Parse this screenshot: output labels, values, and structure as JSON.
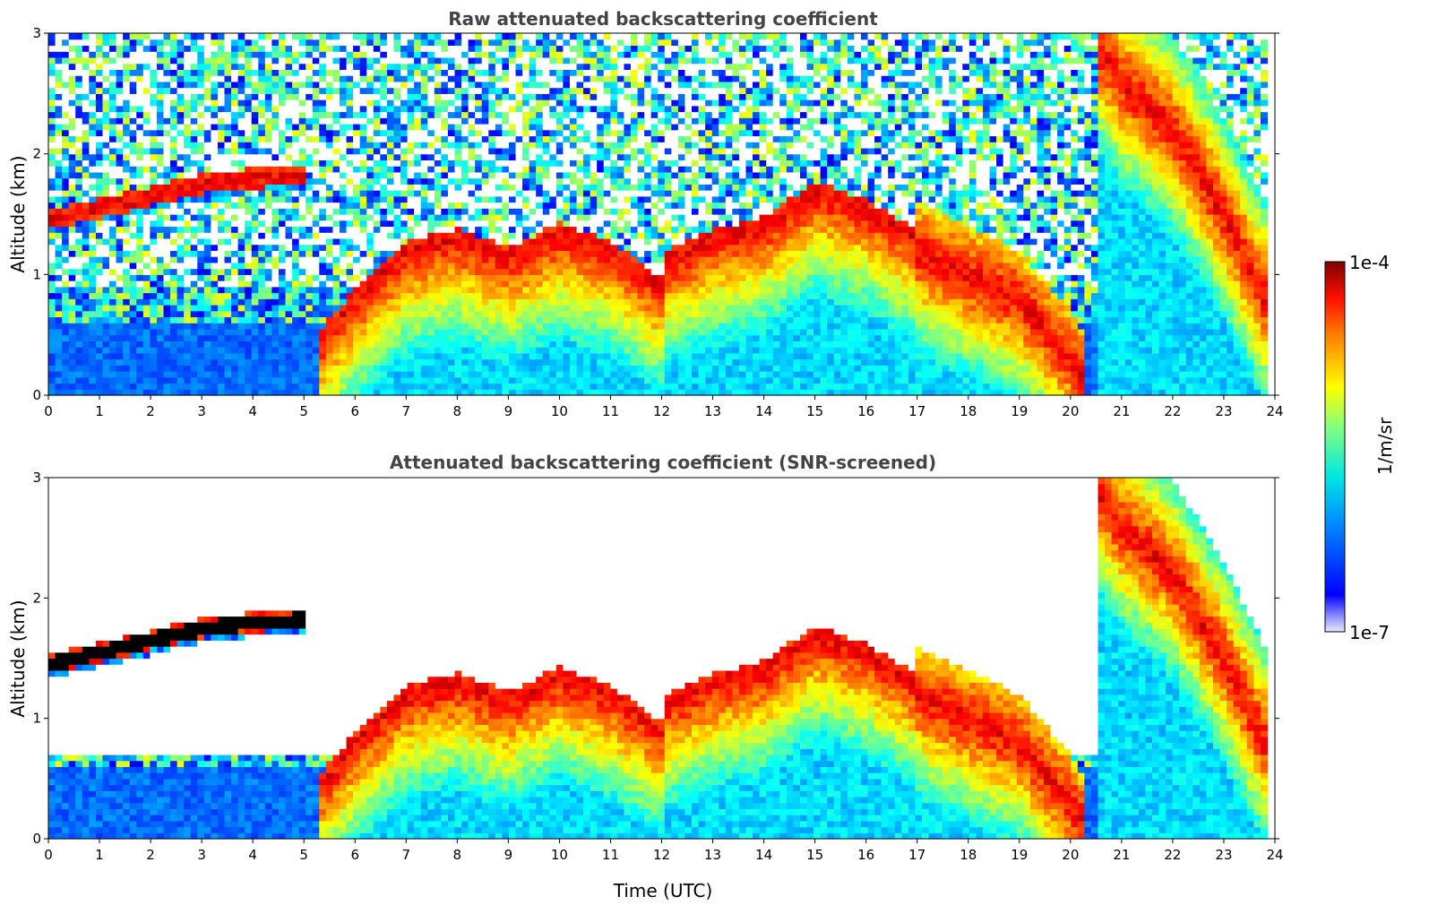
{
  "chart_data": [
    {
      "type": "heatmap",
      "title": "Raw attenuated backscattering coefficient",
      "xlabel": "",
      "ylabel": "Altitude (km)",
      "xlim": [
        0,
        24
      ],
      "ylim": [
        0,
        3
      ],
      "xticks": [
        "0",
        "1",
        "2",
        "3",
        "4",
        "5",
        "6",
        "7",
        "8",
        "9",
        "10",
        "11",
        "12",
        "13",
        "14",
        "15",
        "16",
        "17",
        "18",
        "19",
        "20",
        "21",
        "22",
        "23",
        "24"
      ],
      "yticks": [
        "0",
        "1",
        "2",
        "3"
      ],
      "screened": false,
      "layers": [
        {
          "name": "cloud-1",
          "x": [
            0,
            1,
            2,
            3,
            4,
            5
          ],
          "y": [
            1.45,
            1.55,
            1.65,
            1.75,
            1.8,
            1.82
          ],
          "data_end": 5.4
        },
        {
          "name": "cloud-2",
          "x": [
            5.3,
            6,
            7,
            8,
            9,
            10,
            11,
            12
          ],
          "y": [
            0.45,
            0.8,
            1.2,
            1.3,
            1.15,
            1.35,
            1.2,
            0.9
          ]
        },
        {
          "name": "cloud-3",
          "x": [
            12,
            13,
            14,
            15,
            16,
            17
          ],
          "y": [
            1.1,
            1.3,
            1.4,
            1.7,
            1.55,
            1.3
          ]
        },
        {
          "name": "precip",
          "x": [
            17,
            18,
            19,
            20,
            20.3
          ],
          "y": [
            1.2,
            1.0,
            0.8,
            0.3,
            0.1
          ]
        },
        {
          "name": "high-cloud",
          "x": [
            20.5,
            21,
            22,
            23,
            23.8
          ],
          "y": [
            2.9,
            2.6,
            2.2,
            1.5,
            0.8
          ]
        }
      ],
      "data_xmax": 23.85
    },
    {
      "type": "heatmap",
      "title": "Attenuated backscattering coefficient (SNR-screened)",
      "xlabel": "Time (UTC)",
      "ylabel": "Altitude (km)",
      "xlim": [
        0,
        24
      ],
      "ylim": [
        0,
        3
      ],
      "xticks": [
        "0",
        "1",
        "2",
        "3",
        "4",
        "5",
        "6",
        "7",
        "8",
        "9",
        "10",
        "11",
        "12",
        "13",
        "14",
        "15",
        "16",
        "17",
        "18",
        "19",
        "20",
        "21",
        "22",
        "23",
        "24"
      ],
      "yticks": [
        "0",
        "1",
        "2",
        "3"
      ],
      "screened": true,
      "data_xmax": 23.85
    }
  ],
  "colorbar": {
    "label": "1/m/sr",
    "max_label": "1e-4",
    "min_label": "1e-7",
    "scale": "log",
    "colormap": "jet",
    "range": [
      1e-07,
      0.0001
    ]
  },
  "colors": {
    "background_color": "#ffffff",
    "title_color": "#444444",
    "cloud_top_color": "#8b0000",
    "saturated_color": "#000000"
  }
}
